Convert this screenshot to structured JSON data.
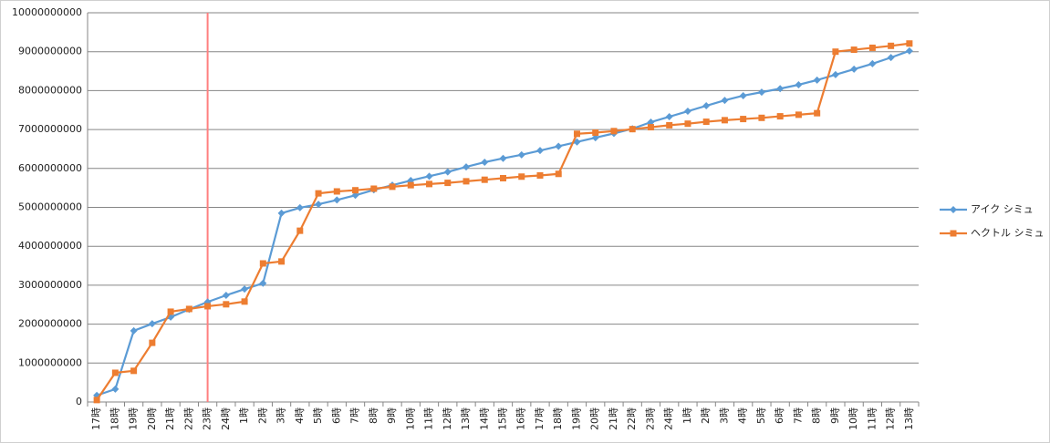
{
  "chart_data": {
    "type": "line",
    "categories": [
      "17時",
      "18時",
      "19時",
      "20時",
      "21時",
      "22時",
      "23時",
      "24時",
      "1時",
      "2時",
      "3時",
      "4時",
      "5時",
      "6時",
      "7時",
      "8時",
      "9時",
      "10時",
      "11時",
      "12時",
      "13時",
      "14時",
      "15時",
      "16時",
      "17時",
      "18時",
      "19時",
      "20時",
      "21時",
      "22時",
      "23時",
      "24時",
      "1時",
      "2時",
      "3時",
      "4時",
      "5時",
      "6時",
      "7時",
      "8時",
      "9時",
      "10時",
      "11時",
      "12時",
      "13時"
    ],
    "series": [
      {
        "name": "アイク シミュ",
        "color": "#5b9bd5",
        "marker": "diamond",
        "values": [
          170000000,
          330000000,
          1830000000,
          2010000000,
          2180000000,
          2380000000,
          2570000000,
          2740000000,
          2900000000,
          3050000000,
          4850000000,
          4990000000,
          5080000000,
          5190000000,
          5310000000,
          5450000000,
          5570000000,
          5690000000,
          5800000000,
          5910000000,
          6040000000,
          6160000000,
          6260000000,
          6350000000,
          6460000000,
          6570000000,
          6680000000,
          6790000000,
          6900000000,
          7020000000,
          7190000000,
          7330000000,
          7470000000,
          7610000000,
          7750000000,
          7870000000,
          7960000000,
          8050000000,
          8150000000,
          8270000000,
          8410000000,
          8550000000,
          8690000000,
          8850000000,
          9020000000
        ]
      },
      {
        "name": "ヘクトル シミュ",
        "color": "#ed7d31",
        "marker": "square",
        "values": [
          50000000,
          750000000,
          800000000,
          1520000000,
          2320000000,
          2390000000,
          2460000000,
          2510000000,
          2580000000,
          3560000000,
          3610000000,
          4400000000,
          5360000000,
          5410000000,
          5440000000,
          5480000000,
          5530000000,
          5570000000,
          5600000000,
          5630000000,
          5670000000,
          5710000000,
          5750000000,
          5790000000,
          5820000000,
          5860000000,
          6890000000,
          6920000000,
          6960000000,
          7010000000,
          7060000000,
          7110000000,
          7150000000,
          7200000000,
          7240000000,
          7270000000,
          7300000000,
          7340000000,
          7380000000,
          7420000000,
          9000000000,
          9050000000,
          9100000000,
          9150000000,
          9210000000
        ]
      }
    ],
    "ylim": [
      0,
      10000000000
    ],
    "yticks": [
      0,
      1000000000,
      2000000000,
      3000000000,
      4000000000,
      5000000000,
      6000000000,
      7000000000,
      8000000000,
      9000000000,
      10000000000
    ],
    "grid": true,
    "legend": "right",
    "vline": {
      "category_index": 6,
      "color": "#ff7f7f"
    }
  }
}
